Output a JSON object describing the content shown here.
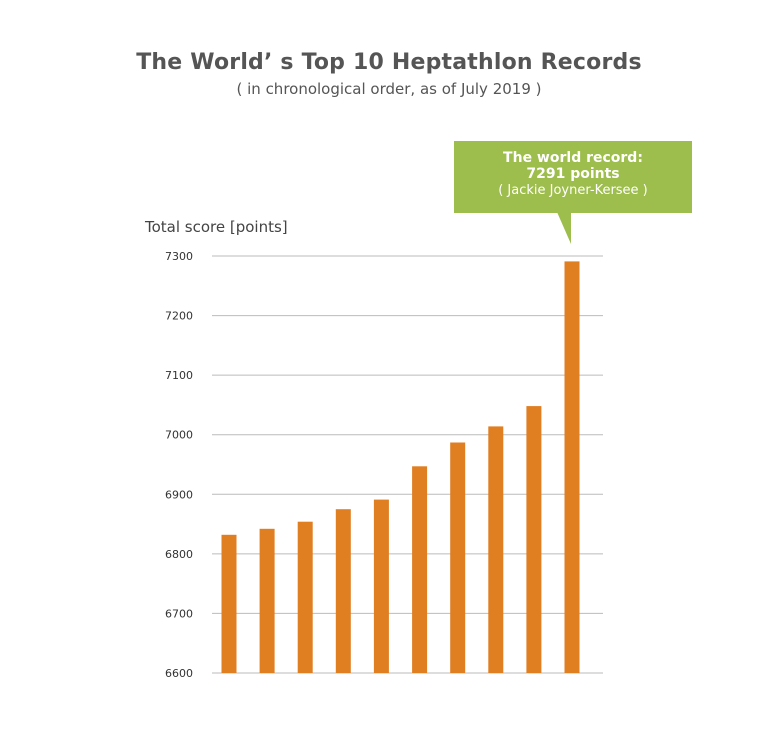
{
  "chart_data": {
    "type": "bar",
    "title": "The World’ s Top 10 Heptathlon Records",
    "subtitle": "( in chronological order, as of July 2019 )",
    "ylabel": "Total score [points]",
    "xlabel": "",
    "ylim": [
      6600,
      7300
    ],
    "yticks": [
      6600,
      6700,
      6800,
      6900,
      7000,
      7100,
      7200,
      7300
    ],
    "ytick_labels": [
      "6600",
      "6700",
      "6800",
      "6900",
      "7000",
      "7100",
      "7200",
      "7300"
    ],
    "grid": true,
    "values": [
      6832,
      6842,
      6854,
      6875,
      6891,
      6947,
      6987,
      7014,
      7048,
      7291
    ],
    "bar_color": "#e07e22",
    "annotation": {
      "line1": "The world record:",
      "line2": "7291 points",
      "line3": "( Jackie Joyner-Kersee )",
      "bar_index": 9,
      "color": "#9dbd4c"
    }
  }
}
